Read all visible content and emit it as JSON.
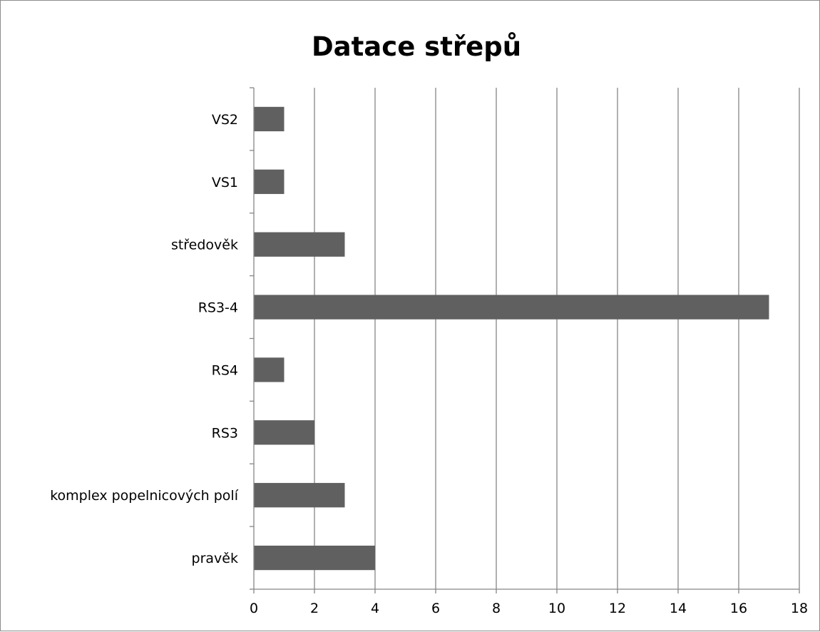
{
  "chart_data": {
    "type": "bar",
    "orientation": "horizontal",
    "title": "Datace střepů",
    "categories": [
      "pravěk",
      "komplex popelnicových polí",
      "RS3",
      "RS4",
      "RS3-4",
      "středověk",
      "VS1",
      "VS2"
    ],
    "values": [
      4,
      3,
      2,
      1,
      17,
      3,
      1,
      1
    ],
    "xlim": [
      0,
      18
    ],
    "x_ticks": [
      "0",
      "2",
      "4",
      "6",
      "8",
      "10",
      "12",
      "14",
      "16",
      "18"
    ],
    "xlabel": "",
    "ylabel": "",
    "grid": "vertical",
    "legend": "none",
    "bar_color": "#606060",
    "grid_color": "#868686"
  }
}
